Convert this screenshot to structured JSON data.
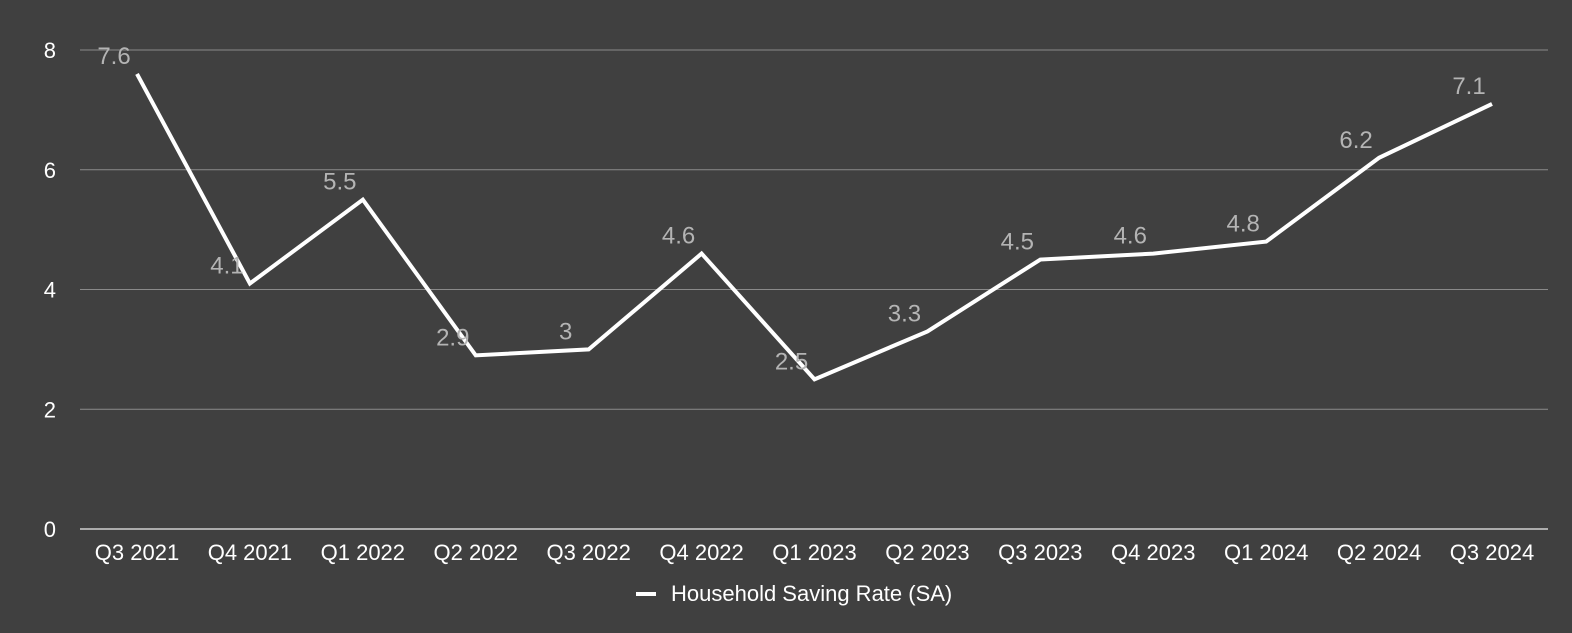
{
  "colors": {
    "background": "#404040",
    "gridline": "#8a8a8a",
    "axis_text": "#ffffff",
    "series_line": "#ffffff",
    "data_label": "#b4b4b4"
  },
  "chart_data": {
    "type": "line",
    "title": "",
    "xlabel": "",
    "ylabel": "",
    "categories": [
      "Q3 2021",
      "Q4 2021",
      "Q1 2022",
      "Q2 2022",
      "Q3 2022",
      "Q4 2022",
      "Q1 2023",
      "Q2 2023",
      "Q3 2023",
      "Q4 2023",
      "Q1 2024",
      "Q2 2024",
      "Q3 2024"
    ],
    "series": [
      {
        "name": "Household Saving Rate (SA)",
        "values": [
          7.6,
          4.1,
          5.5,
          2.9,
          3,
          4.6,
          2.5,
          3.3,
          4.5,
          4.6,
          4.8,
          6.2,
          7.1
        ],
        "data_labels": [
          "7.6",
          "4.1",
          "5.5",
          "2.9",
          "3",
          "4.6",
          "2.5",
          "3.3",
          "4.5",
          "4.6",
          "4.8",
          "6.2",
          "7.1"
        ]
      }
    ],
    "ylim": [
      0,
      8
    ],
    "yticks": [
      0,
      2,
      4,
      6,
      8
    ],
    "ytick_labels": [
      "0",
      "2",
      "4",
      "6",
      "8"
    ],
    "grid": true,
    "legend": {
      "position": "bottom",
      "entries": [
        "Household Saving Rate (SA)"
      ]
    }
  }
}
